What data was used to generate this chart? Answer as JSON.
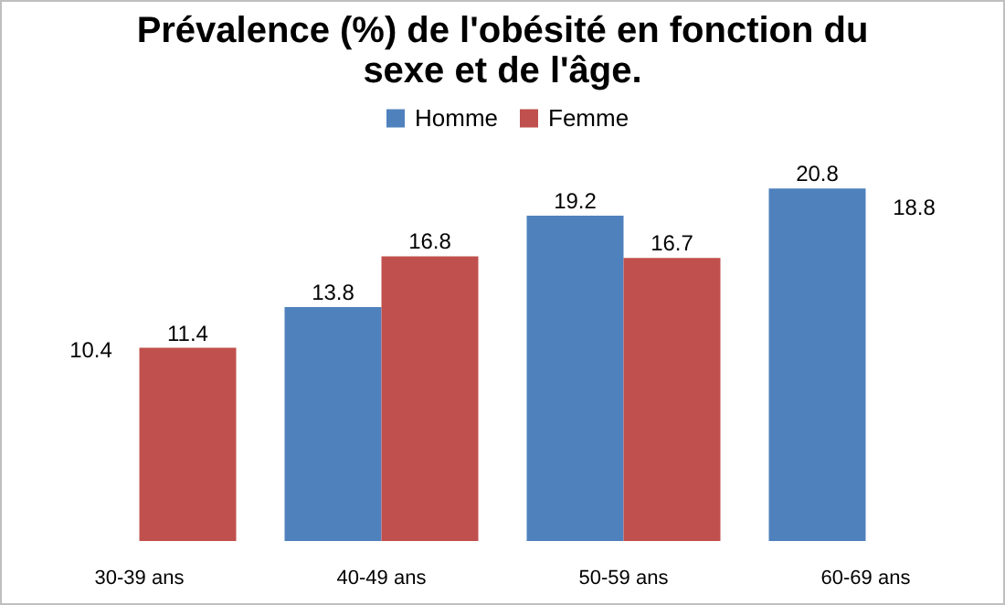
{
  "chart_data": {
    "type": "bar",
    "title": "Prévalence (%) de l'obésité en fonction du sexe et de l'âge.",
    "categories": [
      "30-39 ans",
      "40-49 ans",
      "50-59 ans",
      "60-69 ans"
    ],
    "series": [
      {
        "name": "Homme",
        "color": "#4f81bd",
        "values": [
          null,
          13.8,
          19.2,
          20.8
        ],
        "value_labels": [
          "10.4",
          "13.8",
          "19.2",
          "20.8"
        ]
      },
      {
        "name": "Femme",
        "color": "#c0504d",
        "values": [
          11.4,
          16.8,
          16.7,
          null
        ],
        "value_labels": [
          "11.4",
          "16.8",
          "16.7",
          "18.8"
        ]
      }
    ],
    "legend": "top",
    "grid": false
  }
}
